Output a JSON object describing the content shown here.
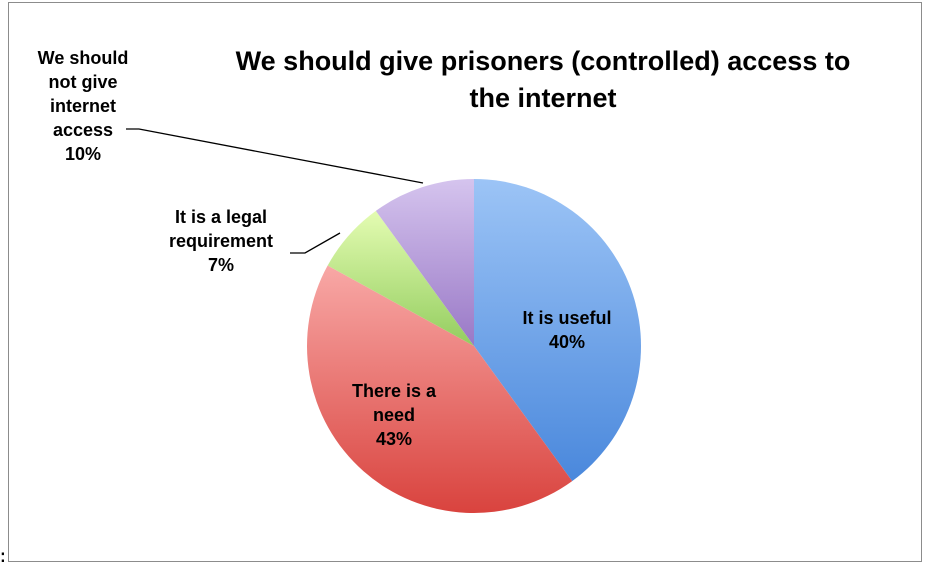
{
  "chart_data": {
    "type": "pie",
    "title": "We should give prisoners (controlled) access to the internet",
    "title_lines": [
      "We should give prisoners (controlled) access to",
      "the internet"
    ],
    "start_angle_deg": 0,
    "direction": "clockwise",
    "data_labels": true,
    "legend": "none",
    "slices": [
      {
        "label": "It is useful",
        "label_lines": [
          "It is useful"
        ],
        "value": 40,
        "value_label": "40%",
        "colors": [
          "#9cc4f6",
          "#4a88dc"
        ]
      },
      {
        "label": "There is a need",
        "label_lines": [
          "There is a",
          "need"
        ],
        "value": 43,
        "value_label": "43%",
        "colors": [
          "#f8a8a6",
          "#d9433e"
        ]
      },
      {
        "label": "It is a legal requirement",
        "label_lines": [
          "It is a legal",
          "requirement"
        ],
        "value": 7,
        "value_label": "7%",
        "colors": [
          "#e4fcb2",
          "#93cd5f"
        ]
      },
      {
        "label": "We should not give internet access",
        "label_lines": [
          "We should",
          "not give",
          "internet",
          "access"
        ],
        "value": 10,
        "value_label": "10%",
        "colors": [
          "#d5c4ee",
          "#9978c6"
        ]
      }
    ]
  },
  "stray_mark": ":"
}
